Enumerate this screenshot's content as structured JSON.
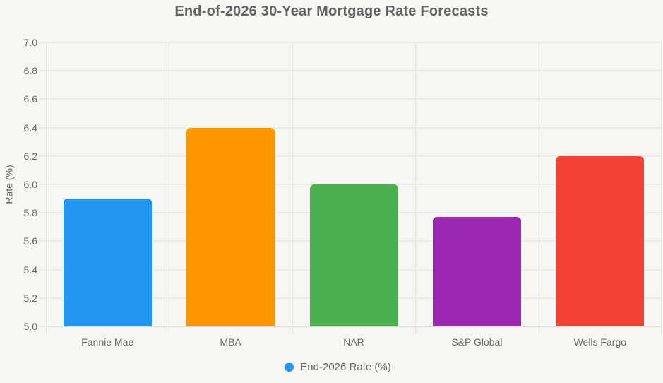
{
  "chart_data": {
    "type": "bar",
    "title": "End-of-2026 30-Year Mortgage Rate Forecasts",
    "categories": [
      "Fannie Mae",
      "MBA",
      "NAR",
      "S&P Global",
      "Wells Fargo"
    ],
    "values": [
      5.9,
      6.4,
      6.0,
      5.77,
      6.2
    ],
    "bar_colors": [
      "#2196F3",
      "#FF9800",
      "#4CAF50",
      "#9C27B0",
      "#F44336"
    ],
    "xlabel": "",
    "ylabel": "Rate (%)",
    "ylim": [
      5.0,
      7.0
    ],
    "ytick_step": 0.2,
    "ytick_labels": [
      "5.0",
      "5.2",
      "5.4",
      "5.6",
      "5.8",
      "6.0",
      "6.2",
      "6.4",
      "6.6",
      "6.8",
      "7.0"
    ],
    "grid": true,
    "legend": {
      "label": "End-2026 Rate (%)",
      "marker_color": "#2196F3",
      "position": "bottom"
    }
  },
  "theme": {
    "background": "#f6f6f3",
    "gridline_color": "#e3e3e0",
    "axis_line_color": "#d2d2cf",
    "text_color": "#666666",
    "title_color": "#636363"
  }
}
